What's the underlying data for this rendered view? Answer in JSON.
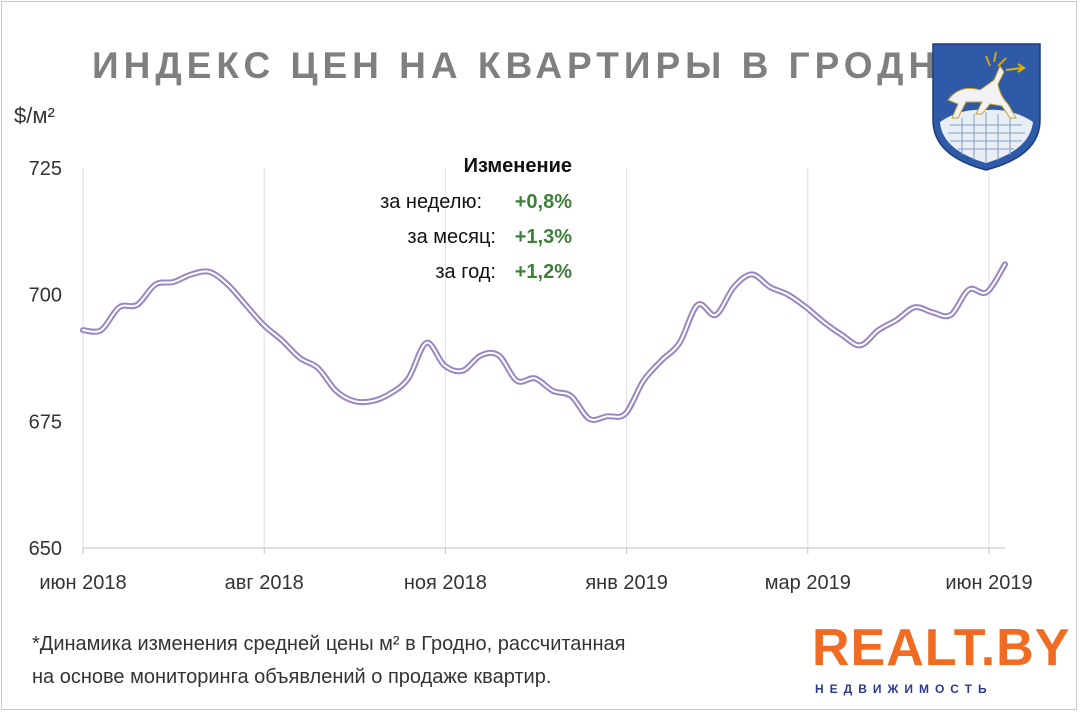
{
  "title": "ИНДЕКС ЦЕН НА КВАРТИРЫ В ГРОДНО",
  "unit_label": "$/м²",
  "change_box": {
    "heading": "Изменение",
    "rows": [
      {
        "label": "за неделю:",
        "value": "+0,8%"
      },
      {
        "label": "за месяц:",
        "value": "+1,3%"
      },
      {
        "label": "за год:",
        "value": "+1,2%"
      }
    ]
  },
  "footnote": {
    "line1": "*Динамика изменения средней цены м² в Гродно, рассчитанная",
    "line2": "на основе мониторинга объявлений о продаже квартир."
  },
  "logo": {
    "main": "REALT.BY",
    "sub": "НЕДВИЖИМОСТЬ"
  },
  "colors": {
    "line": "#9b86c4",
    "accent_green": "#3f7f3a",
    "brand_orange": "#f26b22",
    "brand_blue": "#2b3a8f"
  },
  "chart_data": {
    "type": "line",
    "title": "ИНДЕКС ЦЕН НА КВАРТИРЫ В ГРОДНО",
    "ylabel": "$/м²",
    "ylim": [
      650,
      725
    ],
    "y_ticks": [
      650,
      675,
      700,
      725
    ],
    "x_tick_labels": [
      "июн 2018",
      "авг 2018",
      "ноя 2018",
      "янв 2019",
      "мар 2019",
      "июн 2019"
    ],
    "grid": "vertical",
    "series": [
      {
        "values": [
          693,
          693,
          697.5,
          698,
          702,
          702.5,
          704,
          704.5,
          702,
          698,
          694,
          691,
          687.5,
          685.5,
          681,
          679,
          679,
          680.5,
          683.5,
          690.5,
          686,
          685,
          688,
          688,
          683,
          683.5,
          681,
          680,
          675.5,
          676,
          676.5,
          683,
          687,
          690.5,
          698,
          696,
          701.5,
          704,
          701.5,
          700,
          697.5,
          694.5,
          692,
          690,
          693,
          695,
          697.5,
          696.5,
          696,
          701,
          700.5,
          706
        ]
      }
    ]
  }
}
